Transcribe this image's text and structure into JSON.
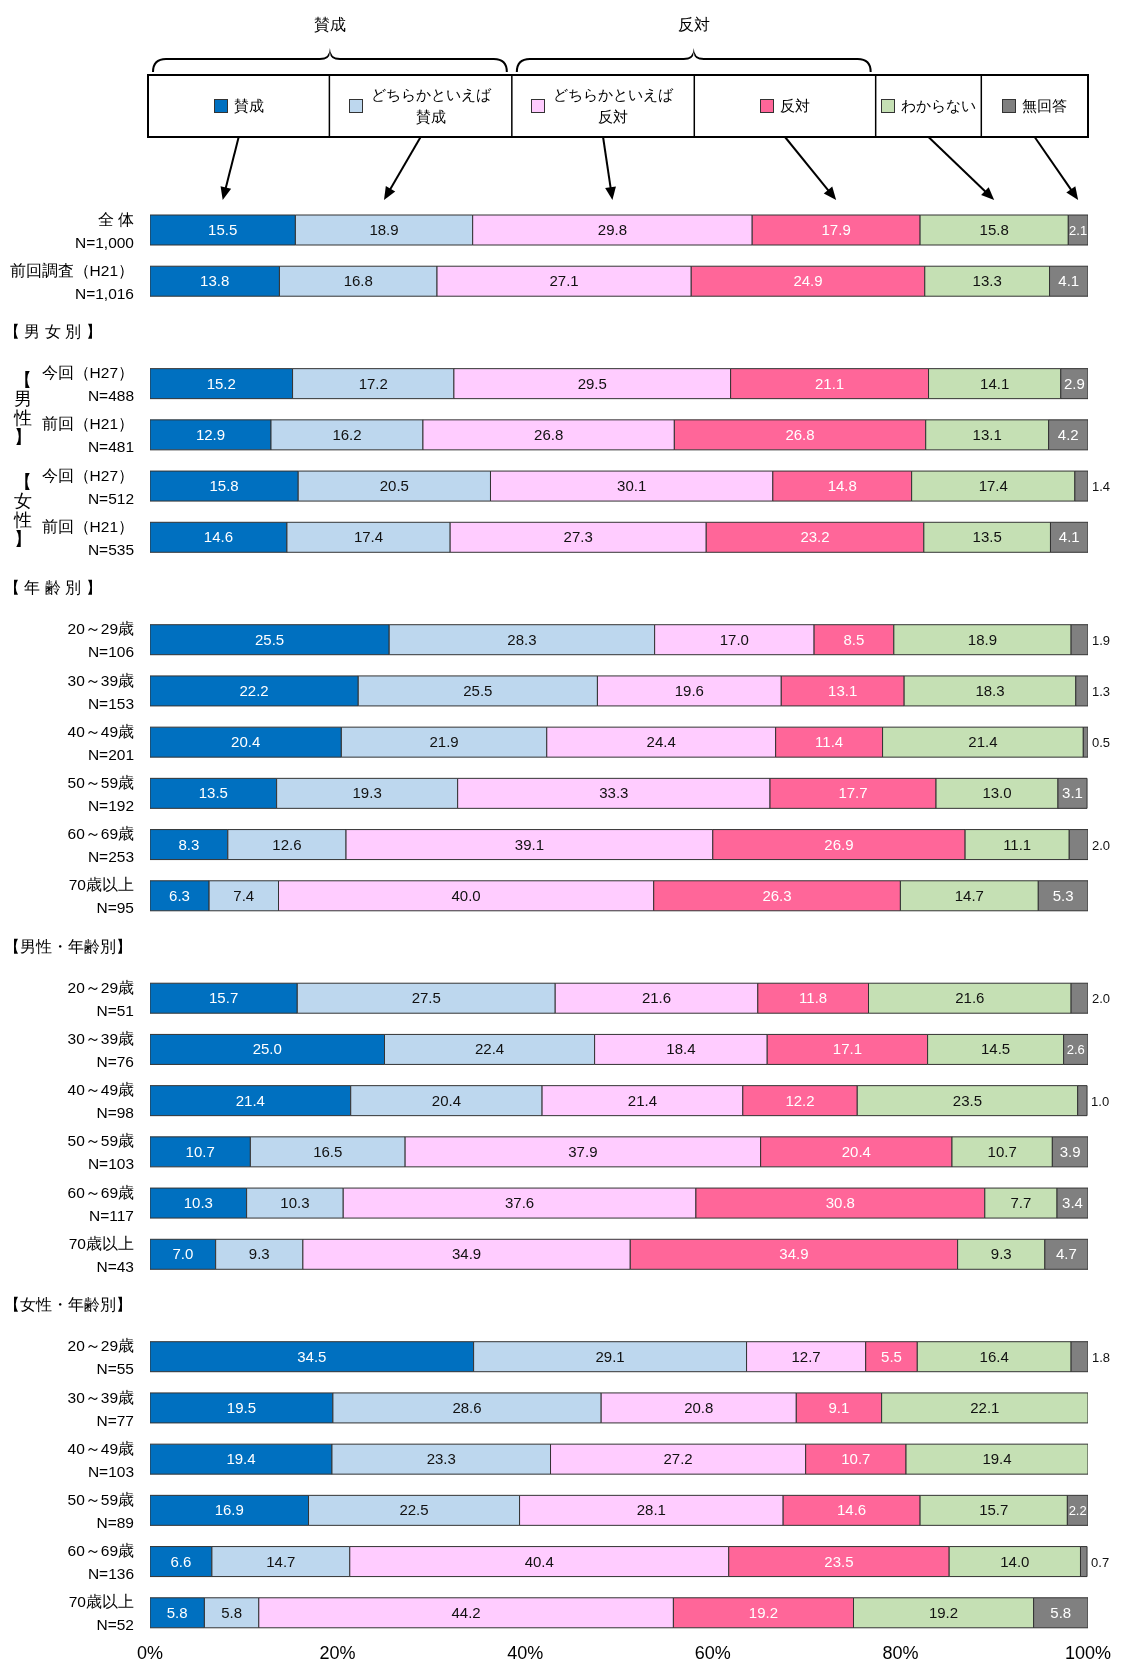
{
  "chart_data": {
    "type": "bar",
    "orientation": "horizontal",
    "stacked": true,
    "legend": "top",
    "categories": [
      "全 体\nN=1,000",
      "前回調査（H21）\nN=1,016",
      null,
      "今回（H27）\nN=488",
      "前回（H21）\nN=481",
      "今回（H27）\nN=512",
      "前回（H21）\nN=535",
      null,
      "20～29歳\nN=106",
      "30～39歳\nN=153",
      "40～49歳\nN=201",
      "50～59歳\nN=192",
      "60～69歳\nN=253",
      "70歳以上\nN=95",
      null,
      "20～29歳\nN=51",
      "30～39歳\nN=76",
      "40～49歳\nN=98",
      "50～59歳\nN=103",
      "60～69歳\nN=117",
      "70歳以上\nN=43",
      null,
      "20～29歳\nN=55",
      "30～39歳\nN=77",
      "40～49歳\nN=103",
      "50～59歳\nN=89",
      "60～69歳\nN=136",
      "70歳以上\nN=52"
    ],
    "series": [
      {
        "name": "賛成",
        "color": "#0070c0",
        "values": [
          15.5,
          13.8,
          null,
          15.2,
          12.9,
          15.8,
          14.6,
          null,
          25.5,
          22.2,
          20.4,
          13.5,
          8.3,
          6.3,
          null,
          15.7,
          25.0,
          21.4,
          10.7,
          10.3,
          7.0,
          null,
          34.5,
          19.5,
          19.4,
          16.9,
          6.6,
          5.8
        ],
        "value_labels": [
          "15.5",
          "13.8",
          null,
          "15.2",
          "12.9",
          "15.8",
          "14.6",
          null,
          "25.5",
          "22.2",
          "20.4",
          "13.5",
          "8.3",
          "6.3",
          null,
          "15.7",
          "25.0",
          "21.4",
          "10.7",
          "10.3",
          "7.0",
          null,
          "34.5",
          "19.5",
          "19.4",
          "16.9",
          "6.6",
          "5.8"
        ]
      },
      {
        "name": "どちらかといえば賛成",
        "color": "#bdd7ee",
        "values": [
          18.9,
          16.8,
          null,
          17.2,
          16.2,
          20.5,
          17.4,
          null,
          28.3,
          25.5,
          21.9,
          19.3,
          12.6,
          7.4,
          null,
          27.5,
          22.4,
          20.4,
          16.5,
          10.3,
          9.3,
          null,
          29.1,
          28.6,
          23.3,
          22.5,
          14.7,
          5.8
        ],
        "value_labels": [
          "18.9",
          "16.8",
          null,
          "17.2",
          "16.2",
          "20.5",
          "17.4",
          null,
          "28.3",
          "25.5",
          "21.9",
          "19.3",
          "12.6",
          "7.4",
          null,
          "27.5",
          "22.4",
          "20.4",
          "16.5",
          "10.3",
          "9.3",
          null,
          "29.1",
          "28.6",
          "23.3",
          "22.5",
          "14.7",
          "5.8"
        ]
      },
      {
        "name": "どちらかといえば反対",
        "color": "#ffccff",
        "values": [
          29.8,
          27.1,
          null,
          29.5,
          26.8,
          30.1,
          27.3,
          null,
          17.0,
          19.6,
          24.4,
          33.3,
          39.1,
          40.0,
          null,
          21.6,
          18.4,
          21.4,
          37.9,
          37.6,
          34.9,
          null,
          12.7,
          20.8,
          27.2,
          28.1,
          40.4,
          44.2
        ],
        "value_labels": [
          "29.8",
          "27.1",
          null,
          "29.5",
          "26.8",
          "30.1",
          "27.3",
          null,
          "17.0",
          "19.6",
          "24.4",
          "33.3",
          "39.1",
          "40.0",
          null,
          "21.6",
          "18.4",
          "21.4",
          "37.9",
          "37.6",
          "34.9",
          null,
          "12.7",
          "20.8",
          "27.2",
          "28.1",
          "40.4",
          "44.2"
        ]
      },
      {
        "name": "反対",
        "color": "#ff6699",
        "values": [
          17.9,
          24.9,
          null,
          21.1,
          26.8,
          14.8,
          23.2,
          null,
          8.5,
          13.1,
          11.4,
          17.7,
          26.9,
          26.3,
          null,
          11.8,
          17.1,
          12.2,
          20.4,
          30.8,
          34.9,
          null,
          5.5,
          9.1,
          10.7,
          14.6,
          23.5,
          19.2
        ],
        "value_labels": [
          "17.9",
          "24.9",
          null,
          "21.1",
          "26.8",
          "14.8",
          "23.2",
          null,
          "8.5",
          "13.1",
          "11.4",
          "17.7",
          "26.9",
          "26.3",
          null,
          "11.8",
          "17.1",
          "12.2",
          "20.4",
          "30.8",
          "34.9",
          null,
          "5.5",
          "9.1",
          "10.7",
          "14.6",
          "23.5",
          "19.2"
        ]
      },
      {
        "name": "わからない",
        "color": "#c5e0b4",
        "values": [
          15.8,
          13.3,
          null,
          14.1,
          13.1,
          17.4,
          13.5,
          null,
          18.9,
          18.3,
          21.4,
          13.0,
          11.1,
          14.7,
          null,
          21.6,
          14.5,
          23.5,
          10.7,
          7.7,
          9.3,
          null,
          16.4,
          22.1,
          19.4,
          15.7,
          14.0,
          19.2
        ],
        "value_labels": [
          "15.8",
          "13.3",
          null,
          "14.1",
          "13.1",
          "17.4",
          "13.5",
          null,
          "18.9",
          "18.3",
          "21.4",
          "13.0",
          "11.1",
          "14.7",
          null,
          "21.6",
          "14.5",
          "23.5",
          "10.7",
          "7.7",
          "9.3",
          null,
          "16.4",
          "22.1",
          "19.4",
          "15.7",
          "14.0",
          "19.2"
        ]
      },
      {
        "name": "無回答",
        "color": "#808080",
        "values": [
          2.1,
          4.1,
          null,
          2.9,
          4.2,
          1.4,
          4.1,
          null,
          1.9,
          1.3,
          0.5,
          3.1,
          2.0,
          5.3,
          null,
          2.0,
          2.6,
          1.0,
          3.9,
          3.4,
          4.7,
          null,
          1.8,
          null,
          null,
          2.2,
          0.7,
          5.8
        ],
        "value_labels": [
          "2.1",
          "4.1",
          null,
          "2.9",
          "4.2",
          "1.4",
          "4.1",
          null,
          "1.9",
          "1.3",
          "0.5",
          "3.1",
          "2.0",
          "5.3",
          null,
          "2.0",
          "2.6",
          "1.0",
          "3.9",
          "3.4",
          "4.7",
          null,
          "1.8",
          null,
          null,
          "2.2",
          "0.7",
          "5.8"
        ]
      }
    ],
    "xlim": [
      0,
      100
    ],
    "xticks": [
      {
        "value": 0,
        "label": "0%"
      },
      {
        "value": 20,
        "label": "20%"
      },
      {
        "value": 40,
        "label": "40%"
      },
      {
        "value": 60,
        "label": "60%"
      },
      {
        "value": 80,
        "label": "80%"
      },
      {
        "value": 100,
        "label": "100%"
      }
    ],
    "annotations": [
      "賛成",
      "反対",
      "【男性】",
      "【女性】",
      "【 男 女 別 】",
      "【 年 齢 別 】",
      "【男性・年齢別】",
      "【女性・年齢別】"
    ]
  }
}
